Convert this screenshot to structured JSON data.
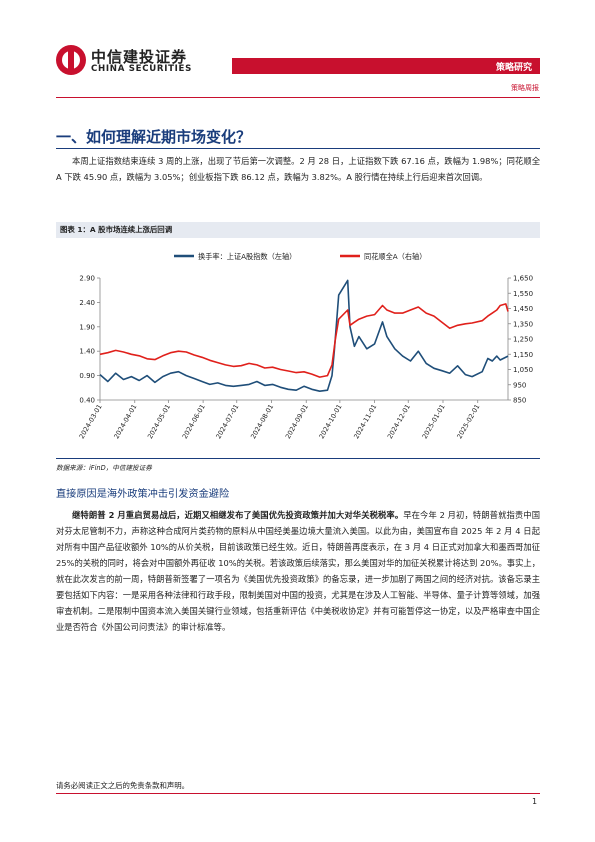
{
  "header": {
    "logo_cn": "中信建投证券",
    "logo_en": "CHINA SECURITIES",
    "tag": "策略研究",
    "sub": "策略周报"
  },
  "section_title": "一、如何理解近期市场变化？",
  "para1": "本周上证指数结束连续 3 周的上涨，出现了节后第一次调整。2 月 28 日，上证指数下跌 67.16 点，跌幅为 1.98%；同花顺全 A 下跌 45.90 点，跌幅为 3.05%；创业板指下跌 86.12 点，跌幅为 3.82%。A 股行情在持续上行后迎来首次回调。",
  "figure": {
    "title": "图表 1：A 股市场连续上涨后回调",
    "source": "数据来源：iFinD，中信建投证券"
  },
  "chart_data": {
    "type": "line",
    "title": "",
    "x": [
      "2024-03-01",
      "2024-04-01",
      "2024-05-01",
      "2024-06-01",
      "2024-07-01",
      "2024-08-01",
      "2024-09-01",
      "2024-10-01",
      "2024-11-01",
      "2024-12-01",
      "2025-01-01",
      "2025-02-01"
    ],
    "xlabel": "",
    "y_left": {
      "ylim": [
        0.4,
        2.9
      ],
      "ticks": [
        "2.90",
        "2.40",
        "1.90",
        "1.40",
        "0.90",
        "0.40"
      ]
    },
    "y_right": {
      "ylim": [
        850,
        1650
      ],
      "ticks": [
        "1,650",
        "1,550",
        "1,450",
        "1,350",
        "1,250",
        "1,150",
        "1,050",
        "950",
        "850"
      ]
    },
    "legend_position": "top",
    "series": [
      {
        "name": "换手率：上证A股指数（左轴）",
        "axis": "left",
        "color": "#1f4e79",
        "points": [
          [
            "2024-03-01",
            0.92
          ],
          [
            "2024-03-08",
            0.78
          ],
          [
            "2024-03-15",
            0.95
          ],
          [
            "2024-03-22",
            0.82
          ],
          [
            "2024-03-29",
            0.88
          ],
          [
            "2024-04-05",
            0.8
          ],
          [
            "2024-04-12",
            0.9
          ],
          [
            "2024-04-19",
            0.76
          ],
          [
            "2024-04-26",
            0.88
          ],
          [
            "2024-05-03",
            0.95
          ],
          [
            "2024-05-10",
            0.98
          ],
          [
            "2024-05-17",
            0.9
          ],
          [
            "2024-05-24",
            0.84
          ],
          [
            "2024-05-31",
            0.78
          ],
          [
            "2024-06-07",
            0.72
          ],
          [
            "2024-06-14",
            0.75
          ],
          [
            "2024-06-21",
            0.7
          ],
          [
            "2024-06-28",
            0.68
          ],
          [
            "2024-07-05",
            0.7
          ],
          [
            "2024-07-12",
            0.72
          ],
          [
            "2024-07-19",
            0.78
          ],
          [
            "2024-07-26",
            0.7
          ],
          [
            "2024-08-02",
            0.72
          ],
          [
            "2024-08-09",
            0.66
          ],
          [
            "2024-08-16",
            0.62
          ],
          [
            "2024-08-23",
            0.6
          ],
          [
            "2024-08-30",
            0.68
          ],
          [
            "2024-09-06",
            0.62
          ],
          [
            "2024-09-13",
            0.58
          ],
          [
            "2024-09-20",
            0.6
          ],
          [
            "2024-09-24",
            0.9
          ],
          [
            "2024-09-26",
            1.4
          ],
          [
            "2024-09-30",
            2.55
          ],
          [
            "2024-10-08",
            2.85
          ],
          [
            "2024-10-10",
            1.9
          ],
          [
            "2024-10-14",
            1.5
          ],
          [
            "2024-10-18",
            1.7
          ],
          [
            "2024-10-25",
            1.45
          ],
          [
            "2024-11-01",
            1.55
          ],
          [
            "2024-11-08",
            2.0
          ],
          [
            "2024-11-12",
            1.7
          ],
          [
            "2024-11-19",
            1.45
          ],
          [
            "2024-11-26",
            1.3
          ],
          [
            "2024-12-03",
            1.2
          ],
          [
            "2024-12-10",
            1.4
          ],
          [
            "2024-12-17",
            1.15
          ],
          [
            "2024-12-24",
            1.05
          ],
          [
            "2024-12-31",
            1.0
          ],
          [
            "2025-01-07",
            0.95
          ],
          [
            "2025-01-14",
            1.1
          ],
          [
            "2025-01-21",
            0.92
          ],
          [
            "2025-01-27",
            0.88
          ],
          [
            "2025-02-05",
            0.98
          ],
          [
            "2025-02-10",
            1.25
          ],
          [
            "2025-02-14",
            1.2
          ],
          [
            "2025-02-18",
            1.3
          ],
          [
            "2025-02-21",
            1.22
          ],
          [
            "2025-02-28",
            1.3
          ]
        ]
      },
      {
        "name": "同花顺全A（右轴）",
        "axis": "right",
        "color": "#e0201b",
        "points": [
          [
            "2024-03-01",
            1150
          ],
          [
            "2024-03-08",
            1160
          ],
          [
            "2024-03-15",
            1175
          ],
          [
            "2024-03-22",
            1165
          ],
          [
            "2024-03-29",
            1150
          ],
          [
            "2024-04-05",
            1140
          ],
          [
            "2024-04-12",
            1120
          ],
          [
            "2024-04-19",
            1115
          ],
          [
            "2024-04-26",
            1140
          ],
          [
            "2024-05-03",
            1160
          ],
          [
            "2024-05-10",
            1170
          ],
          [
            "2024-05-17",
            1165
          ],
          [
            "2024-05-24",
            1145
          ],
          [
            "2024-05-31",
            1130
          ],
          [
            "2024-06-07",
            1110
          ],
          [
            "2024-06-14",
            1095
          ],
          [
            "2024-06-21",
            1080
          ],
          [
            "2024-06-28",
            1070
          ],
          [
            "2024-07-05",
            1075
          ],
          [
            "2024-07-12",
            1090
          ],
          [
            "2024-07-19",
            1080
          ],
          [
            "2024-07-26",
            1060
          ],
          [
            "2024-08-02",
            1065
          ],
          [
            "2024-08-09",
            1050
          ],
          [
            "2024-08-16",
            1040
          ],
          [
            "2024-08-23",
            1030
          ],
          [
            "2024-08-30",
            1035
          ],
          [
            "2024-09-06",
            1020
          ],
          [
            "2024-09-13",
            1000
          ],
          [
            "2024-09-20",
            1010
          ],
          [
            "2024-09-24",
            1080
          ],
          [
            "2024-09-27",
            1250
          ],
          [
            "2024-09-30",
            1380
          ],
          [
            "2024-10-08",
            1440
          ],
          [
            "2024-10-10",
            1340
          ],
          [
            "2024-10-14",
            1360
          ],
          [
            "2024-10-18",
            1380
          ],
          [
            "2024-10-25",
            1400
          ],
          [
            "2024-11-01",
            1410
          ],
          [
            "2024-11-08",
            1470
          ],
          [
            "2024-11-12",
            1440
          ],
          [
            "2024-11-19",
            1420
          ],
          [
            "2024-11-26",
            1420
          ],
          [
            "2024-12-03",
            1440
          ],
          [
            "2024-12-10",
            1460
          ],
          [
            "2024-12-17",
            1420
          ],
          [
            "2024-12-24",
            1400
          ],
          [
            "2024-12-31",
            1360
          ],
          [
            "2025-01-07",
            1320
          ],
          [
            "2025-01-14",
            1340
          ],
          [
            "2025-01-21",
            1350
          ],
          [
            "2025-01-27",
            1355
          ],
          [
            "2025-02-05",
            1370
          ],
          [
            "2025-02-10",
            1400
          ],
          [
            "2025-02-14",
            1420
          ],
          [
            "2025-02-18",
            1440
          ],
          [
            "2025-02-21",
            1470
          ],
          [
            "2025-02-26",
            1480
          ],
          [
            "2025-02-28",
            1430
          ]
        ]
      }
    ]
  },
  "subhead": "直接原因是海外政策冲击引发资金避险",
  "para2_bold": "继特朗普 2 月重启贸易战后，近期又相继发布了美国优先投资政策并加大对华关税税率。",
  "para2_rest": "早在今年 2 月初，特朗普就指责中国对芬太尼管制不力，声称这种合成阿片类药物的原料从中国经美墨边境大量流入美国。以此为由，美国宣布自 2025 年 2 月 4 日起对所有中国产品征收额外 10%的从价关税，目前该政策已经生效。近日，特朗普再度表示，在 3 月 4 日正式对加拿大和墨西哥加征 25%的关税的同时，将会对中国额外再征收 10%的关税。若该政策后续落实，那么美国对华的加征关税累计将达到 20%。事实上，就在此次发言的前一周，特朗普新签署了一项名为《美国优先投资政策》的备忘录，进一步加剧了两国之间的经济对抗。该备忘录主要包括如下内容：一是采用各种法律和行政手段，限制美国对中国的投资，尤其是在涉及人工智能、半导体、量子计算等领域，加强审查机制。二是限制中国资本流入美国关键行业领域，包括重新评估《中美税收协定》并有可能暂停这一协定，以及严格审查中国企业是否符合《外国公司问责法》的审计标准等。",
  "footer_note": "请务必阅读正文之后的免责条款和声明。",
  "page_number": "1"
}
